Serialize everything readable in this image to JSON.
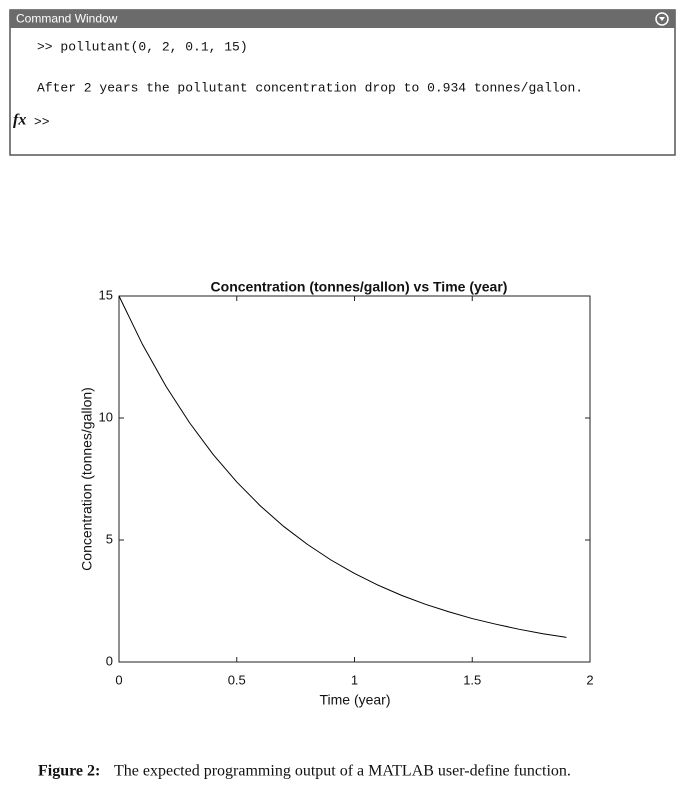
{
  "command_window": {
    "title": "Command Window",
    "lines": [
      ">> pollutant(0, 2, 0.1, 15)",
      "After 2 years the pollutant concentration drop to 0.934 tonnes/gallon."
    ],
    "prompt": {
      "icon": "fx",
      "text": ">>"
    }
  },
  "chart_data": {
    "type": "line",
    "title": "Concentration (tonnes/gallon) vs Time (year)",
    "x_label": "Time (year)",
    "y_label": "Concentration (tonnes/gallon)",
    "x": [
      0,
      0.1,
      0.2,
      0.3,
      0.4,
      0.5,
      0.6,
      0.7,
      0.8,
      0.9,
      1.0,
      1.1,
      1.2,
      1.3,
      1.4,
      1.5,
      1.6,
      1.7,
      1.8,
      1.9
    ],
    "series": [
      {
        "color": "#000000",
        "values": [
          15,
          13.01,
          11.29,
          9.8,
          8.5,
          7.38,
          6.4,
          5.55,
          4.82,
          4.18,
          3.63,
          3.15,
          2.73,
          2.37,
          2.06,
          1.78,
          1.55,
          1.34,
          1.16,
          1.01
        ]
      }
    ],
    "xlim": [
      0,
      2
    ],
    "xticks": [
      0,
      0.5,
      1,
      1.5,
      2
    ],
    "ylim": [
      0,
      15
    ],
    "yticks": [
      0,
      5,
      10,
      15
    ],
    "grid": false
  },
  "caption": {
    "label": "Figure 2:",
    "text": "The expected programming output of a MATLAB user-define function."
  }
}
